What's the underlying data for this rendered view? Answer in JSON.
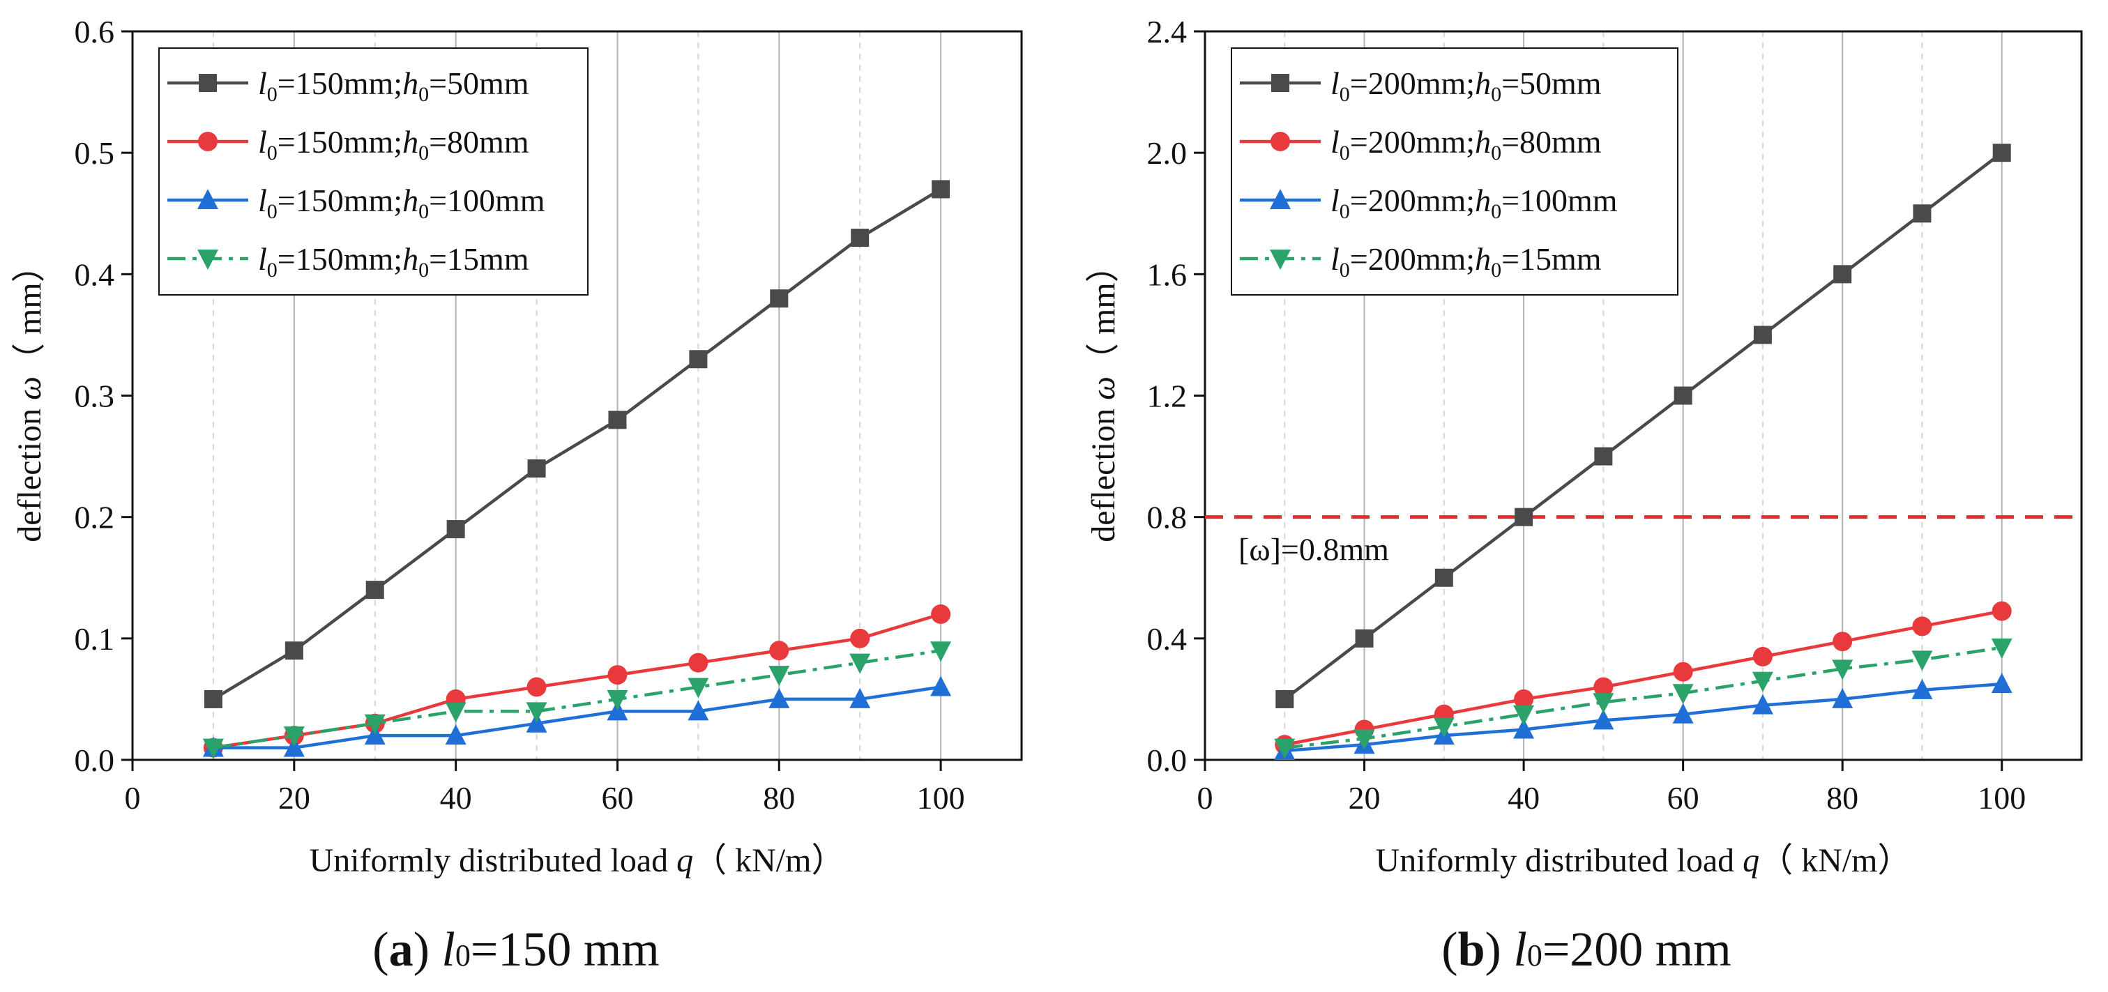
{
  "figure": {
    "colors": {
      "axis": "#111111",
      "grid_major": "#b3b3b3",
      "grid_minor": "#d6d6d6",
      "threshold": "#e8282b"
    }
  },
  "chart_data": [
    {
      "type": "line",
      "panel": "a",
      "caption": {
        "letter": "(a)",
        "var": "l",
        "sub": "0",
        "rest": "=150 mm"
      },
      "xlabel": {
        "pre": "Uniformly distributed load ",
        "var": "q",
        "post": "（ kN/m）"
      },
      "ylabel": {
        "pre": "deflection ",
        "var": "ω",
        "post": "（ mm）"
      },
      "xlim": [
        0,
        110
      ],
      "ylim": [
        0,
        0.6
      ],
      "xticks": [
        0,
        20,
        40,
        60,
        80,
        100
      ],
      "yticks": [
        0.0,
        0.1,
        0.2,
        0.3,
        0.4,
        0.5,
        0.6
      ],
      "ytick_labels": [
        "0.0",
        "0.1",
        "0.2",
        "0.3",
        "0.4",
        "0.5",
        "0.6"
      ],
      "grid": true,
      "legend_position": "top-left",
      "x": [
        10,
        20,
        30,
        40,
        50,
        60,
        70,
        80,
        90,
        100
      ],
      "series": [
        {
          "name": "l0=150mm;h0=50mm",
          "l0": "150",
          "h0": "50",
          "color": "#4a4a4a",
          "marker": "square",
          "dash": "solid",
          "values": [
            0.05,
            0.09,
            0.14,
            0.19,
            0.24,
            0.28,
            0.33,
            0.38,
            0.43,
            0.47
          ]
        },
        {
          "name": "l0=150mm;h0=80mm",
          "l0": "150",
          "h0": "80",
          "color": "#e8393c",
          "marker": "circle",
          "dash": "solid",
          "values": [
            0.01,
            0.02,
            0.03,
            0.05,
            0.06,
            0.07,
            0.08,
            0.09,
            0.1,
            0.12
          ]
        },
        {
          "name": "l0=150mm;h0=100mm",
          "l0": "150",
          "h0": "100",
          "color": "#1f6fd6",
          "marker": "triangle-up",
          "dash": "solid",
          "values": [
            0.01,
            0.01,
            0.02,
            0.02,
            0.03,
            0.04,
            0.04,
            0.05,
            0.05,
            0.06
          ]
        },
        {
          "name": "l0=150mm;h0=15mm",
          "l0": "150",
          "h0": "15",
          "color": "#2aa26a",
          "marker": "triangle-down",
          "dash": "dashdot",
          "values": [
            0.01,
            0.02,
            0.03,
            0.04,
            0.04,
            0.05,
            0.06,
            0.07,
            0.08,
            0.09
          ]
        }
      ]
    },
    {
      "type": "line",
      "panel": "b",
      "caption": {
        "letter": "(b)",
        "var": "l",
        "sub": "0",
        "rest": "=200 mm"
      },
      "xlabel": {
        "pre": "Uniformly distributed load ",
        "var": "q",
        "post": "（ kN/m）"
      },
      "ylabel": {
        "pre": "deflection ",
        "var": "ω",
        "post": "（ mm）"
      },
      "xlim": [
        0,
        110
      ],
      "ylim": [
        0,
        2.4
      ],
      "xticks": [
        0,
        20,
        40,
        60,
        80,
        100
      ],
      "yticks": [
        0.0,
        0.4,
        0.8,
        1.2,
        1.6,
        2.0,
        2.4
      ],
      "ytick_labels": [
        "0.0",
        "0.4",
        "0.8",
        "1.2",
        "1.6",
        "2.0",
        "2.4"
      ],
      "grid": true,
      "legend_position": "top-left",
      "threshold": {
        "value": 0.8,
        "label": "[ω]=0.8mm"
      },
      "x": [
        10,
        20,
        30,
        40,
        50,
        60,
        70,
        80,
        90,
        100
      ],
      "series": [
        {
          "name": "l0=200mm;h0=50mm",
          "l0": "200",
          "h0": "50",
          "color": "#4a4a4a",
          "marker": "square",
          "dash": "solid",
          "values": [
            0.2,
            0.4,
            0.6,
            0.8,
            1.0,
            1.2,
            1.4,
            1.6,
            1.8,
            2.0
          ]
        },
        {
          "name": "l0=200mm;h0=80mm",
          "l0": "200",
          "h0": "80",
          "color": "#e8393c",
          "marker": "circle",
          "dash": "solid",
          "values": [
            0.05,
            0.1,
            0.15,
            0.2,
            0.24,
            0.29,
            0.34,
            0.39,
            0.44,
            0.49
          ]
        },
        {
          "name": "l0=200mm;h0=100mm",
          "l0": "200",
          "h0": "100",
          "color": "#1f6fd6",
          "marker": "triangle-up",
          "dash": "solid",
          "values": [
            0.03,
            0.05,
            0.08,
            0.1,
            0.13,
            0.15,
            0.18,
            0.2,
            0.23,
            0.25
          ]
        },
        {
          "name": "l0=200mm;h0=15mm",
          "l0": "200",
          "h0": "15",
          "color": "#2aa26a",
          "marker": "triangle-down",
          "dash": "dashdot",
          "values": [
            0.04,
            0.07,
            0.11,
            0.15,
            0.19,
            0.22,
            0.26,
            0.3,
            0.33,
            0.37
          ]
        }
      ]
    }
  ]
}
